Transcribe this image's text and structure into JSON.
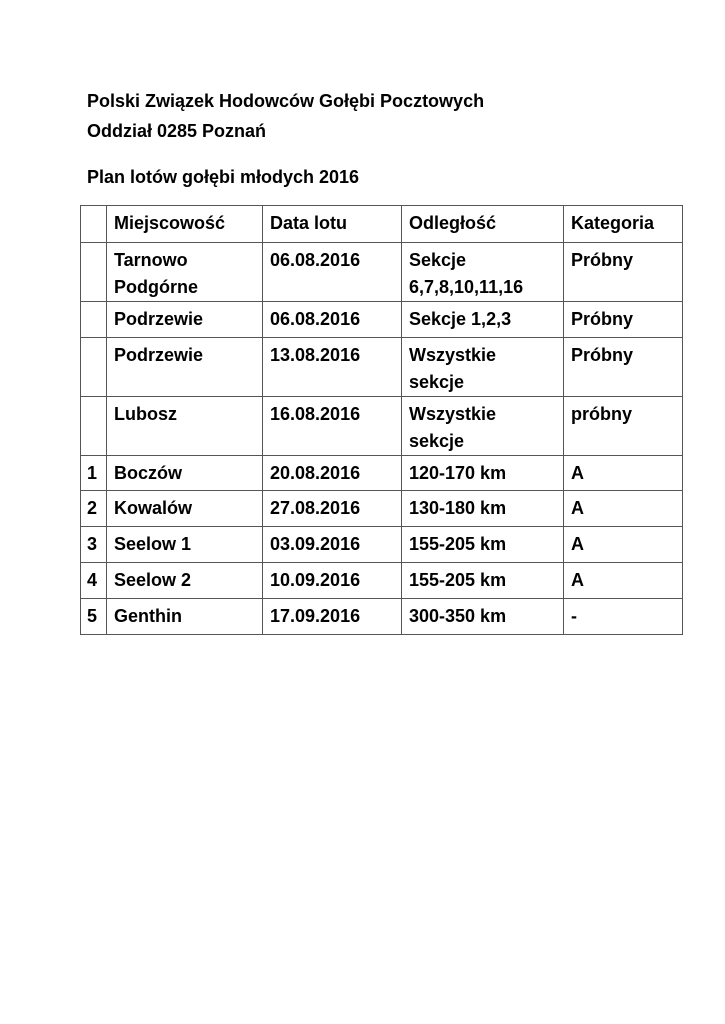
{
  "document": {
    "title_line1": "Polski Związek Hodowców Gołębi Pocztowych",
    "title_line2": "Oddział 0285 Poznań",
    "subtitle": "Plan lotów gołębi młodych 2016"
  },
  "table": {
    "headers": [
      "",
      "Miejscowość",
      "Data lotu",
      "Odległość",
      "Kategoria"
    ],
    "rows": [
      {
        "no": "",
        "place": "Tarnowo Podgórne",
        "date": "06.08.2016",
        "distance": "Sekcje 6,7,8,10,11,16",
        "category": "Próbny"
      },
      {
        "no": "",
        "place": "Podrzewie",
        "date": "06.08.2016",
        "distance": "Sekcje 1,2,3",
        "category": "Próbny"
      },
      {
        "no": "",
        "place": "Podrzewie",
        "date": "13.08.2016",
        "distance": "Wszystkie sekcje",
        "category": "Próbny"
      },
      {
        "no": "",
        "place": "Lubosz",
        "date": "16.08.2016",
        "distance": "Wszystkie sekcje",
        "category": "próbny"
      },
      {
        "no": "1",
        "place": "Boczów",
        "date": "20.08.2016",
        "distance": "120-170 km",
        "category": "A"
      },
      {
        "no": "2",
        "place": "Kowalów",
        "date": "27.08.2016",
        "distance": "130-180 km",
        "category": "A"
      },
      {
        "no": "3",
        "place": "Seelow 1",
        "date": "03.09.2016",
        "distance": "155-205 km",
        "category": "A"
      },
      {
        "no": "4",
        "place": "Seelow 2",
        "date": "10.09.2016",
        "distance": "155-205 km",
        "category": "A"
      },
      {
        "no": "5",
        "place": "Genthin",
        "date": "17.09.2016",
        "distance": "300-350 km",
        "category": "-"
      }
    ]
  }
}
